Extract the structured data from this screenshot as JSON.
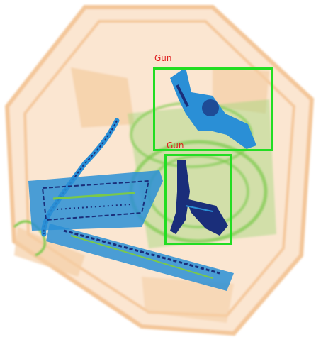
{
  "image": {
    "description_kind": "xray-baggage-scan",
    "colors": {
      "background": "#ffffff",
      "organic_orange": "#f2c08e",
      "organic_light": "#fbe4cc",
      "inorganic_green": "#7ac94a",
      "metal_blue": "#2a8fd6",
      "metal_dark": "#1a2e7a",
      "box_color": "#22dd22",
      "label_color": "#e02020"
    }
  },
  "detections": [
    {
      "label": "Gun"
    },
    {
      "label": "Gun"
    }
  ]
}
